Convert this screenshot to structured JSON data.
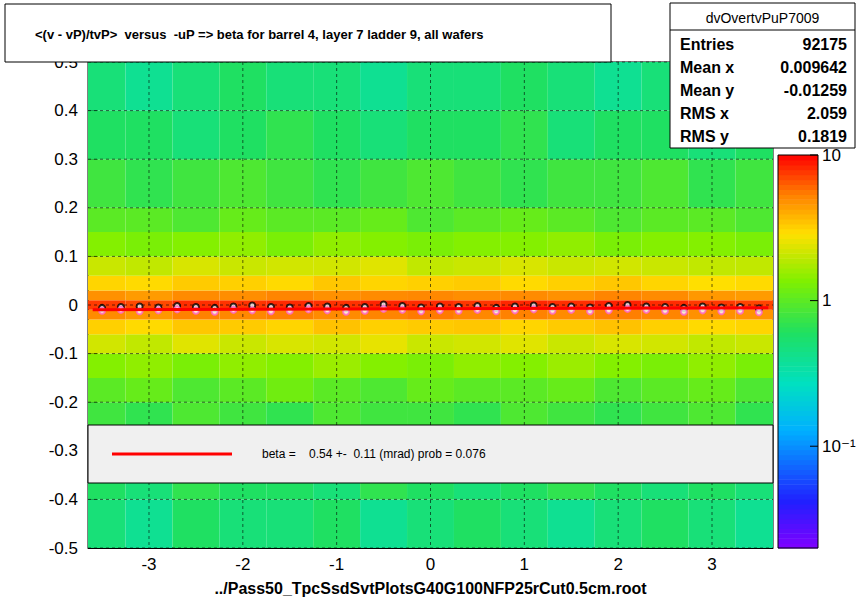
{
  "chart_data": {
    "type": "histogram2d",
    "title": "<(v - vP)/tvP>  versus  -uP => beta for barrel 4, layer 7 ladder 9, all wafers",
    "xlabel": "../Pass50_TpcSsdSvtPlotsG40G100NFP25rCut0.5cm.root",
    "xlim": [
      -3.65,
      3.65
    ],
    "ylim": [
      -0.5,
      0.5
    ],
    "xticks": [
      -3,
      -2,
      -1,
      0,
      1,
      2,
      3
    ],
    "yticks": [
      -0.5,
      -0.4,
      -0.3,
      -0.2,
      -0.1,
      0,
      0.1,
      0.2,
      0.3,
      0.4,
      0.5
    ],
    "grid": true,
    "heatmap": {
      "x_edges": [
        -3.65,
        -3.25,
        -2.75,
        -2.25,
        -1.75,
        -1.25,
        -0.75,
        -0.25,
        0.25,
        0.75,
        1.25,
        1.75,
        2.25,
        2.75,
        3.25,
        3.65
      ],
      "y_edges": [
        -0.5,
        -0.4,
        -0.3,
        -0.2,
        -0.15,
        -0.1,
        -0.06,
        -0.03,
        -0.01,
        0.01,
        0.03,
        0.06,
        0.1,
        0.15,
        0.2,
        0.3,
        0.4,
        0.5
      ],
      "counts": [
        [
          0.5,
          0.4,
          0.6,
          0.5,
          0.5,
          0.6,
          0.4,
          0.5,
          0.6,
          0.5,
          0.4,
          0.5,
          0.6,
          0.5,
          0.4
        ],
        [
          0.6,
          0.5,
          0.7,
          0.6,
          0.6,
          0.5,
          0.7,
          0.6,
          0.5,
          0.6,
          0.7,
          0.6,
          0.5,
          0.6,
          0.5
        ],
        [
          0.8,
          0.7,
          0.9,
          0.8,
          0.7,
          0.9,
          0.8,
          0.8,
          0.7,
          0.9,
          0.8,
          0.7,
          0.8,
          0.9,
          0.7
        ],
        [
          1.0,
          1.1,
          0.9,
          1.0,
          1.2,
          1.0,
          0.9,
          1.1,
          1.0,
          1.0,
          1.1,
          0.9,
          1.0,
          1.1,
          0.9
        ],
        [
          1.4,
          1.5,
          1.3,
          1.5,
          1.4,
          1.6,
          1.4,
          1.3,
          1.5,
          1.4,
          1.6,
          1.4,
          1.3,
          1.5,
          1.3
        ],
        [
          2.2,
          2.0,
          2.4,
          2.1,
          2.3,
          2.2,
          2.5,
          2.1,
          2.2,
          2.4,
          2.1,
          2.3,
          2.2,
          2.0,
          2.1
        ],
        [
          3.2,
          3.0,
          3.4,
          3.3,
          3.1,
          3.5,
          3.2,
          3.3,
          3.4,
          3.1,
          3.3,
          3.5,
          3.2,
          3.0,
          3.1
        ],
        [
          5.0,
          4.6,
          5.3,
          5.1,
          5.4,
          5.0,
          5.2,
          5.5,
          5.1,
          5.3,
          5.0,
          5.4,
          5.2,
          4.8,
          4.7
        ],
        [
          7.5,
          7.0,
          8.0,
          7.8,
          8.2,
          7.9,
          8.4,
          8.1,
          7.7,
          8.3,
          8.0,
          8.5,
          8.1,
          7.6,
          7.2
        ],
        [
          4.8,
          4.5,
          5.0,
          4.9,
          5.2,
          4.8,
          5.0,
          5.1,
          4.9,
          5.0,
          4.8,
          5.2,
          5.0,
          4.6,
          4.5
        ],
        [
          3.1,
          3.0,
          3.3,
          3.2,
          3.0,
          3.4,
          3.1,
          3.2,
          3.3,
          3.0,
          3.2,
          3.4,
          3.1,
          2.9,
          3.0
        ],
        [
          2.1,
          2.0,
          2.3,
          2.1,
          2.2,
          2.2,
          2.4,
          2.0,
          2.1,
          2.3,
          2.1,
          2.2,
          2.1,
          2.0,
          2.0
        ],
        [
          1.4,
          1.3,
          1.4,
          1.5,
          1.3,
          1.5,
          1.4,
          1.3,
          1.4,
          1.4,
          1.5,
          1.3,
          1.4,
          1.4,
          1.3
        ],
        [
          1.0,
          1.0,
          0.9,
          1.1,
          1.0,
          1.0,
          1.1,
          0.9,
          1.0,
          1.1,
          1.0,
          0.9,
          1.0,
          1.0,
          0.9
        ],
        [
          0.8,
          0.7,
          0.8,
          0.9,
          0.8,
          0.7,
          0.8,
          0.9,
          0.8,
          0.7,
          0.8,
          0.8,
          0.9,
          0.7,
          0.8
        ],
        [
          0.6,
          0.6,
          0.5,
          0.6,
          0.7,
          0.6,
          0.5,
          0.6,
          0.6,
          0.7,
          0.5,
          0.6,
          0.6,
          0.5,
          0.6
        ],
        [
          0.5,
          0.4,
          0.5,
          0.6,
          0.5,
          0.5,
          0.4,
          0.5,
          0.5,
          0.6,
          0.5,
          0.4,
          0.5,
          0.5,
          0.4
        ]
      ],
      "color_range": [
        0.02,
        10
      ],
      "color_ticks": [
        {
          "value": 0.1,
          "label": "10⁻¹"
        },
        1,
        10
      ]
    },
    "series": [
      {
        "type": "scatter",
        "marker": "circle",
        "color": "#000000",
        "x": [
          -3.5,
          -3.3,
          -3.1,
          -2.9,
          -2.7,
          -2.5,
          -2.3,
          -2.1,
          -1.9,
          -1.7,
          -1.5,
          -1.3,
          -1.1,
          -0.9,
          -0.7,
          -0.5,
          -0.3,
          -0.1,
          0.1,
          0.3,
          0.5,
          0.7,
          0.9,
          1.1,
          1.3,
          1.5,
          1.7,
          1.9,
          2.1,
          2.3,
          2.5,
          2.7,
          2.9,
          3.1,
          3.3,
          3.5
        ],
        "values": [
          -0.006,
          -0.004,
          -0.003,
          -0.005,
          -0.002,
          -0.004,
          -0.006,
          -0.003,
          -0.001,
          -0.004,
          -0.005,
          -0.002,
          -0.003,
          -0.006,
          -0.004,
          0.001,
          -0.002,
          -0.005,
          -0.003,
          -0.004,
          -0.002,
          -0.006,
          -0.003,
          -0.001,
          -0.004,
          -0.003,
          -0.005,
          -0.002,
          0.0,
          -0.003,
          -0.004,
          -0.006,
          -0.003,
          -0.005,
          -0.004,
          -0.007
        ],
        "errors": [
          0.004,
          0.004,
          0.004,
          0.004,
          0.004,
          0.004,
          0.004,
          0.004,
          0.004,
          0.004,
          0.004,
          0.004,
          0.004,
          0.004,
          0.004,
          0.004,
          0.004,
          0.004,
          0.004,
          0.004,
          0.004,
          0.004,
          0.004,
          0.004,
          0.004,
          0.004,
          0.004,
          0.004,
          0.004,
          0.004,
          0.004,
          0.004,
          0.004,
          0.004,
          0.004,
          0.004
        ]
      },
      {
        "type": "scatter",
        "marker": "circle",
        "color": "#ff66cc",
        "x": [
          -3.5,
          -3.3,
          -3.1,
          -2.9,
          -2.7,
          -2.5,
          -2.3,
          -2.1,
          -1.9,
          -1.7,
          -1.5,
          -1.3,
          -1.1,
          -0.9,
          -0.7,
          -0.5,
          -0.3,
          -0.1,
          0.1,
          0.3,
          0.5,
          0.7,
          0.9,
          1.1,
          1.3,
          1.5,
          1.7,
          1.9,
          2.1,
          2.3,
          2.5,
          2.7,
          2.9,
          3.1,
          3.3,
          3.5
        ],
        "values": [
          -0.012,
          -0.01,
          -0.013,
          -0.011,
          -0.009,
          -0.012,
          -0.014,
          -0.01,
          -0.011,
          -0.013,
          -0.012,
          -0.009,
          -0.011,
          -0.014,
          -0.012,
          -0.008,
          -0.01,
          -0.013,
          -0.011,
          -0.012,
          -0.01,
          -0.013,
          -0.011,
          -0.009,
          -0.012,
          -0.01,
          -0.013,
          -0.011,
          -0.008,
          -0.01,
          -0.012,
          -0.014,
          -0.011,
          -0.013,
          -0.012,
          -0.015
        ]
      },
      {
        "type": "line",
        "line_style": "solid",
        "color": "#ff0000",
        "x": [
          -3.6,
          3.6
        ],
        "values": [
          -0.00974,
          -0.00586
        ]
      }
    ],
    "fit_label": "beta =    0.54 +-  0.11 (mrad) prob = 0.076",
    "stats": {
      "title": "dvOvertvPuP7009",
      "rows": [
        [
          "Entries",
          "92175"
        ],
        [
          "Mean x",
          "0.009642"
        ],
        [
          "Mean y",
          "-0.01259"
        ],
        [
          "RMS x",
          "2.059"
        ],
        [
          "RMS y",
          "0.1819"
        ]
      ]
    }
  }
}
